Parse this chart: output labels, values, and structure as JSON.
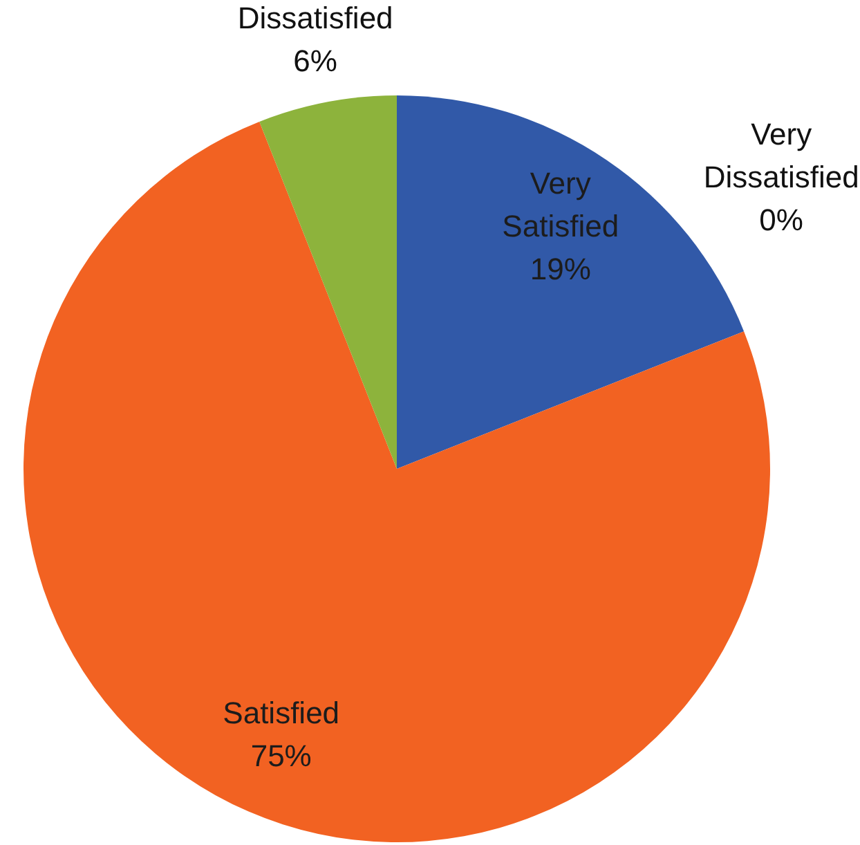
{
  "chart_data": {
    "type": "pie",
    "categories": [
      "Very Satisfied",
      "Satisfied",
      "Dissatisfied",
      "Very Dissatisfied"
    ],
    "values": [
      19,
      75,
      6,
      0
    ],
    "colors": [
      "#3159a8",
      "#f26222",
      "#8db33c",
      null
    ],
    "value_labels": [
      "19%",
      "75%",
      "6%",
      "0%"
    ]
  }
}
